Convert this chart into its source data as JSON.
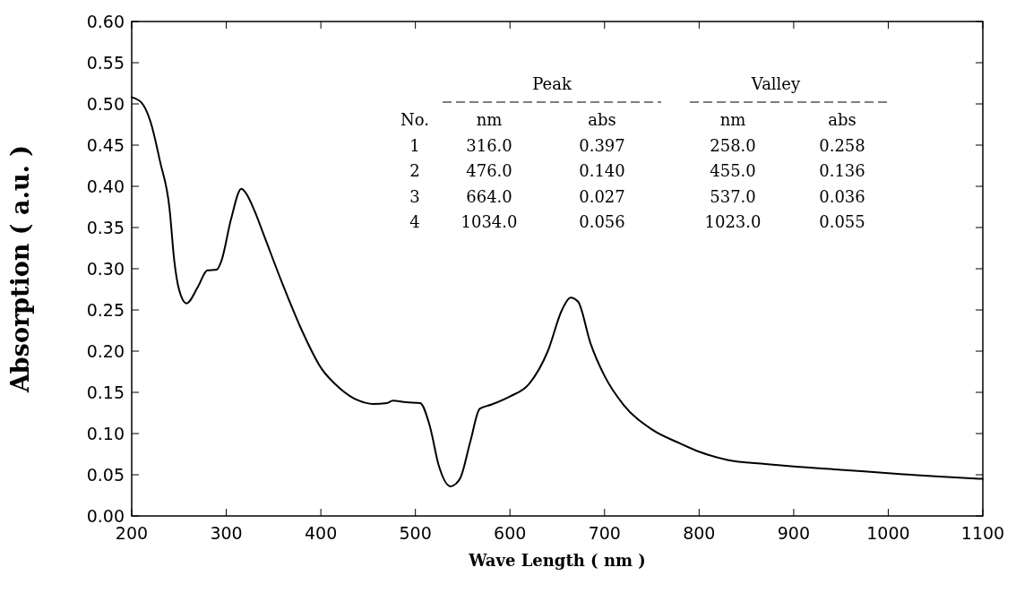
{
  "chart_data": {
    "type": "line",
    "xlabel": "Wave Length ( nm )",
    "ylabel": "Absorption ( a.u. )",
    "xlim": [
      200,
      1100
    ],
    "xticks": [
      200,
      300,
      400,
      500,
      600,
      700,
      800,
      900,
      1000,
      1100
    ],
    "ylim": [
      0,
      0.6
    ],
    "yticks": [
      {
        "value": 0,
        "label": "0.00"
      },
      {
        "value": 0.05,
        "label": "0.05"
      },
      {
        "value": 0.1,
        "label": "0.10"
      },
      {
        "value": 0.15,
        "label": "0.15"
      },
      {
        "value": 0.2,
        "label": "0.20"
      },
      {
        "value": 0.25,
        "label": "0.25"
      },
      {
        "value": 0.3,
        "label": "0.30"
      },
      {
        "value": 0.35,
        "label": "0.35"
      },
      {
        "value": 0.4,
        "label": "0.40"
      },
      {
        "value": 0.45,
        "label": "0.45"
      },
      {
        "value": 0.5,
        "label": "0.50"
      },
      {
        "value": 0.55,
        "label": "0.55"
      },
      {
        "value": 0.6,
        "label": "0.60"
      }
    ],
    "grid": false,
    "marker": "none",
    "line_style": "solid",
    "series": [
      {
        "color": "#000000",
        "x": [
          200,
          210,
          220,
          230,
          240,
          245,
          250,
          258,
          270,
          280,
          290,
          295,
          305,
          316,
          320,
          330,
          340,
          360,
          380,
          400,
          420,
          440,
          455,
          470,
          476,
          490,
          505,
          515,
          525,
          537,
          547,
          558,
          568,
          580,
          600,
          620,
          640,
          655,
          664,
          672,
          685,
          700,
          720,
          750,
          780,
          800,
          830,
          870,
          900,
          950,
          1000,
          1050,
          1100
        ],
        "values": [
          0.508,
          0.502,
          0.478,
          0.43,
          0.373,
          0.31,
          0.275,
          0.258,
          0.278,
          0.298,
          0.299,
          0.31,
          0.36,
          0.397,
          0.393,
          0.37,
          0.34,
          0.28,
          0.225,
          0.18,
          0.155,
          0.14,
          0.136,
          0.137,
          0.14,
          0.138,
          0.137,
          0.11,
          0.06,
          0.036,
          0.045,
          0.09,
          0.13,
          0.135,
          0.145,
          0.16,
          0.2,
          0.25,
          0.265,
          0.26,
          0.21,
          0.17,
          0.135,
          0.105,
          0.088,
          0.078,
          0.068,
          0.063,
          0.06,
          0.056,
          0.052,
          0.048,
          0.045
        ]
      }
    ],
    "annotations": [
      "Peak",
      "Valley",
      "No.",
      "nm",
      "abs",
      "nm",
      "abs",
      "1",
      "316.0",
      "0.397",
      "258.0",
      "0.258",
      "2",
      "476.0",
      "0.140",
      "455.0",
      "0.136",
      "3",
      "664.0",
      "0.027",
      "537.0",
      "0.036",
      "4",
      "1034.0",
      "0.056",
      "1023.0",
      "0.055"
    ]
  }
}
